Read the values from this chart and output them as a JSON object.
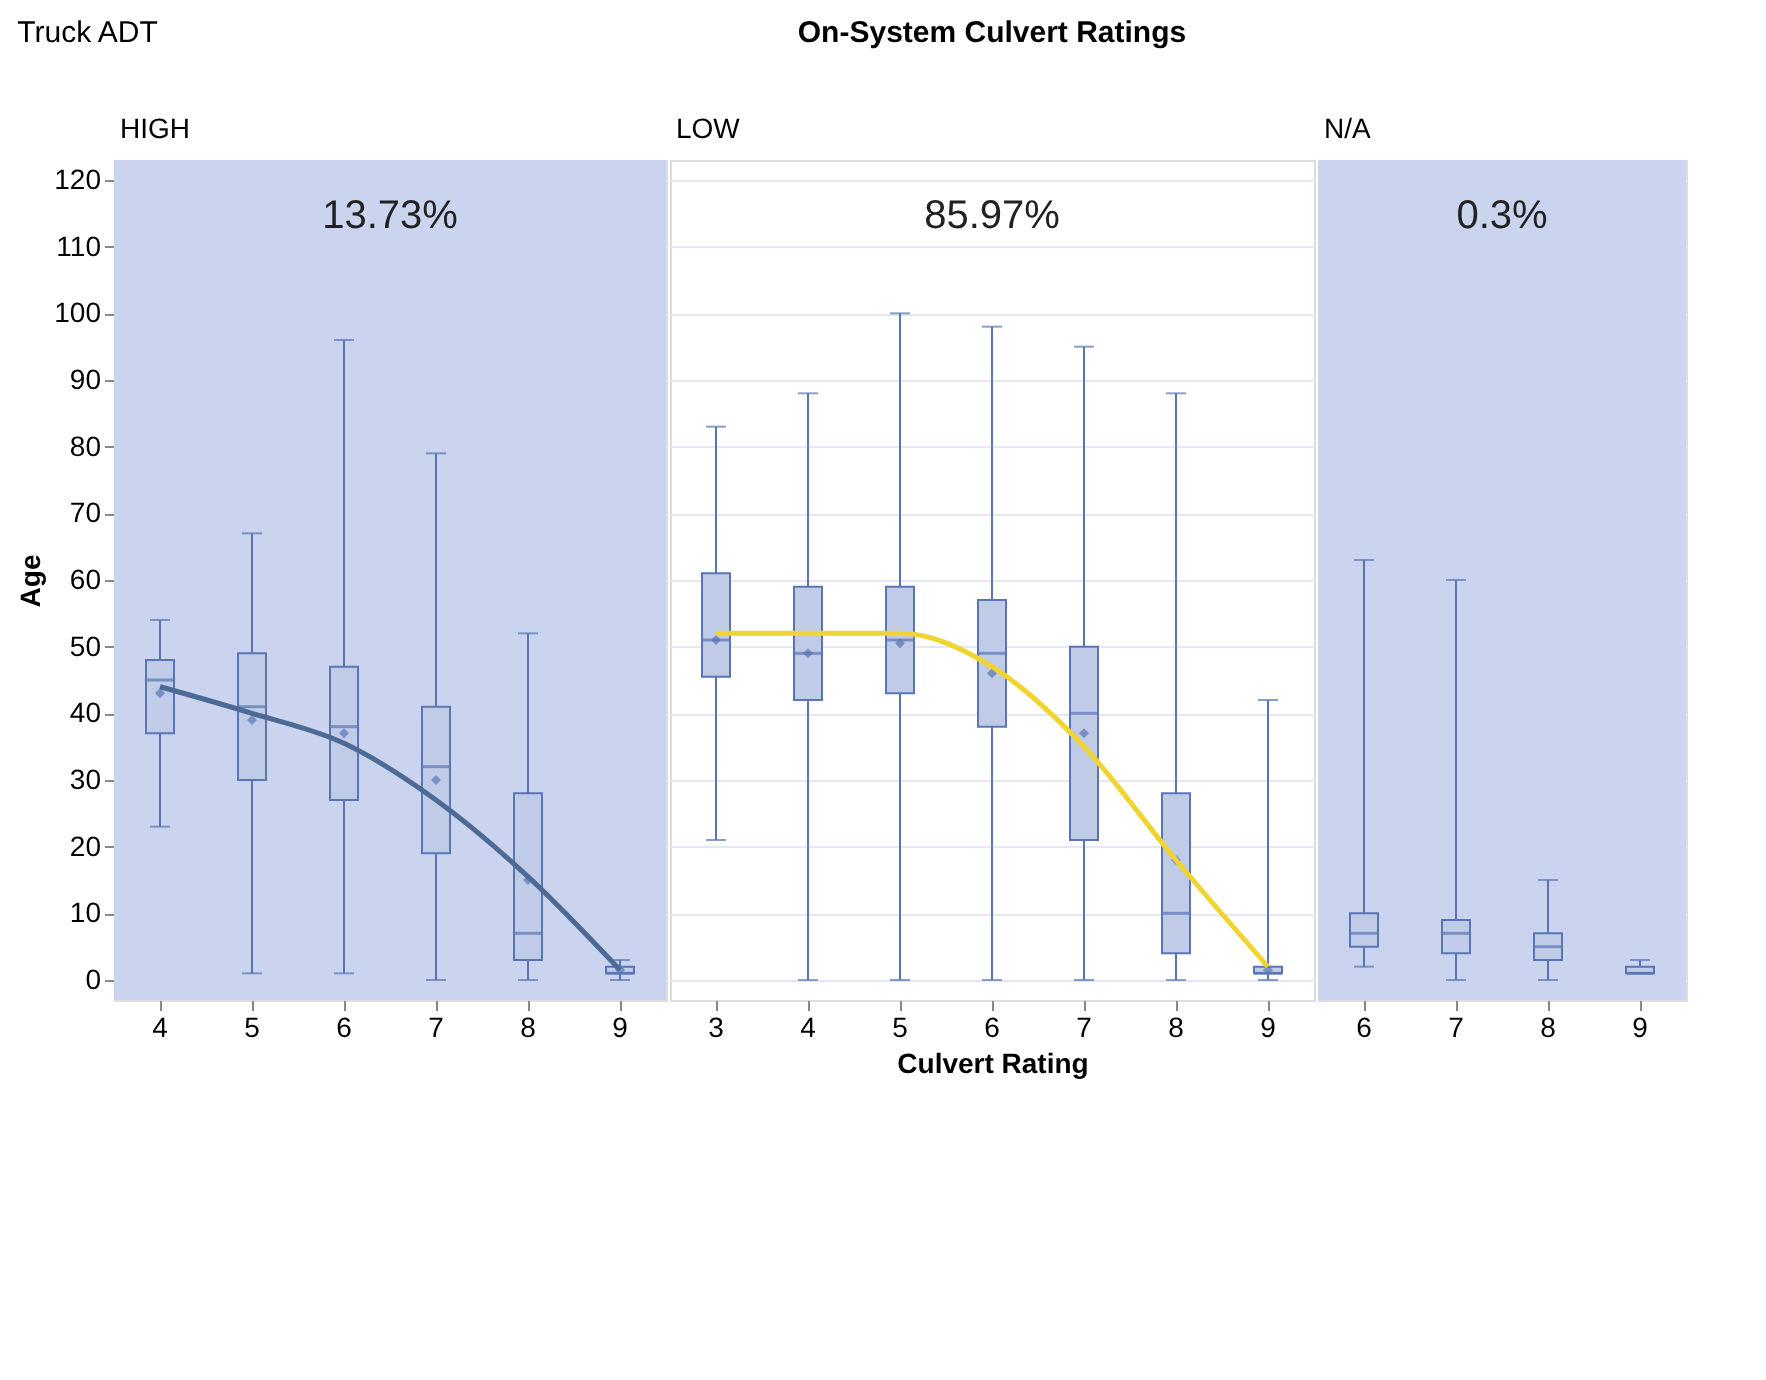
{
  "chart_data": [
    {
      "type": "box",
      "subtitle": "Truck ADT",
      "x2label": "HIGH",
      "ylabel": "Age",
      "categories": [
        "4",
        "5",
        "6",
        "7",
        "8",
        "9"
      ],
      "ylim": [
        -3,
        123
      ],
      "yticks": [
        0,
        10,
        20,
        30,
        40,
        50,
        60,
        70,
        80,
        90,
        100,
        110,
        120
      ],
      "grid": "y",
      "annotations": [
        "13.73%"
      ],
      "bands": [
        {
          "axis": "y",
          "from": -3,
          "to": 123,
          "color": "#cad4ee"
        }
      ],
      "series": [
        {
          "type": "box",
          "color": "#c0cbe8",
          "boxes": [
            {
              "low": 23,
              "q1": 37,
              "median": 45,
              "q3": 48,
              "high": 54,
              "mean": 43
            },
            {
              "low": 1,
              "q1": 30,
              "median": 41,
              "q3": 49,
              "high": 67,
              "mean": 39
            },
            {
              "low": 1,
              "q1": 27,
              "median": 38,
              "q3": 47,
              "high": 96,
              "mean": 37
            },
            {
              "low": 0,
              "q1": 19,
              "median": 32,
              "q3": 41,
              "high": 79,
              "mean": 30
            },
            {
              "low": 0,
              "q1": 3,
              "median": 7,
              "q3": 28,
              "high": 52,
              "mean": 15
            },
            {
              "low": 0,
              "q1": 1,
              "median": 1,
              "q3": 2,
              "high": 3,
              "mean": 1.5
            }
          ]
        },
        {
          "type": "line",
          "color": "#4d6a94",
          "x": [
            "4",
            "5",
            "6",
            "7",
            "8",
            "9"
          ],
          "values": [
            44,
            40,
            35.5,
            27,
            15.5,
            1.5
          ]
        }
      ]
    },
    {
      "type": "box",
      "title": "On-System Culvert Ratings",
      "x2label": "LOW",
      "xlabel": "Culvert Rating",
      "categories": [
        "3",
        "4",
        "5",
        "6",
        "7",
        "8",
        "9"
      ],
      "ylim": [
        -3,
        123
      ],
      "yticks": [
        0,
        10,
        20,
        30,
        40,
        50,
        60,
        70,
        80,
        90,
        100,
        110,
        120
      ],
      "grid": "y",
      "tick_labels": "x",
      "annotations": [
        "85.97%"
      ],
      "series": [
        {
          "type": "box",
          "color": "#c0cbe8",
          "boxes": [
            {
              "low": 21,
              "q1": 45.5,
              "median": 51,
              "q3": 61,
              "high": 83,
              "mean": 51
            },
            {
              "low": 0,
              "q1": 42,
              "median": 49,
              "q3": 59,
              "high": 88,
              "mean": 49
            },
            {
              "low": 0,
              "q1": 43,
              "median": 51,
              "q3": 59,
              "high": 100,
              "mean": 50.5
            },
            {
              "low": 0,
              "q1": 38,
              "median": 49,
              "q3": 57,
              "high": 98,
              "mean": 46
            },
            {
              "low": 0,
              "q1": 21,
              "median": 40,
              "q3": 50,
              "high": 95,
              "mean": 37
            },
            {
              "low": 0,
              "q1": 4,
              "median": 10,
              "q3": 28,
              "high": 88,
              "mean": 18
            },
            {
              "low": 0,
              "q1": 1,
              "median": 1,
              "q3": 2,
              "high": 42,
              "mean": 1.5
            }
          ]
        },
        {
          "type": "line",
          "color": "#f0d432",
          "x": [
            "3",
            "4",
            "5",
            "6",
            "7",
            "8",
            "9"
          ],
          "values": [
            52,
            52,
            52,
            47,
            35,
            18,
            2
          ]
        }
      ]
    },
    {
      "type": "box",
      "x2label": "N/A",
      "categories": [
        "6",
        "7",
        "8",
        "9"
      ],
      "ylim": [
        -3,
        123
      ],
      "yticks": [
        0,
        10,
        20,
        30,
        40,
        50,
        60,
        70,
        80,
        90,
        100,
        110,
        120
      ],
      "grid": "y",
      "tick_labels": "x",
      "annotations": [
        "0.3%"
      ],
      "bands": [
        {
          "axis": "y",
          "from": -3,
          "to": 123,
          "color": "#cad4ee"
        }
      ],
      "series": [
        {
          "type": "box",
          "color": "#c0cbe8",
          "boxes": [
            {
              "low": 2,
              "q1": 5,
              "median": 7,
              "q3": 10,
              "high": 63
            },
            {
              "low": 0,
              "q1": 4,
              "median": 7,
              "q3": 9,
              "high": 60
            },
            {
              "low": 0,
              "q1": 3,
              "median": 5,
              "q3": 7,
              "high": 15
            },
            {
              "low": 1,
              "q1": 1,
              "median": 1,
              "q3": 2,
              "high": 3
            }
          ]
        }
      ]
    }
  ]
}
